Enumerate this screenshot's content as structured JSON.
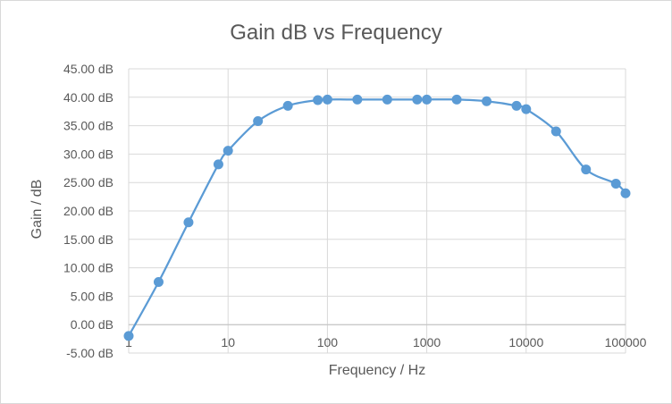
{
  "chart_data": {
    "type": "scatter",
    "title": "Gain dB vs Frequency",
    "xlabel": "Frequency / Hz",
    "ylabel": "Gain / dB",
    "x_scale": "log",
    "xlim": [
      1,
      100000
    ],
    "ylim": [
      -5,
      45
    ],
    "grid": true,
    "legend": "none",
    "line": "smooth",
    "x_ticks": [
      "1",
      "10",
      "100",
      "1000",
      "10000",
      "100000"
    ],
    "y_ticks": [
      "-5.00 dB",
      "0.00 dB",
      "5.00 dB",
      "10.00 dB",
      "15.00 dB",
      "20.00 dB",
      "25.00 dB",
      "30.00 dB",
      "35.00 dB",
      "40.00 dB",
      "45.00 dB"
    ],
    "series": [
      {
        "color": "#5b9bd5",
        "points": [
          [
            1,
            -2.0
          ],
          [
            2,
            7.5
          ],
          [
            4,
            18.0
          ],
          [
            8,
            28.2
          ],
          [
            10,
            30.6
          ],
          [
            20,
            35.8
          ],
          [
            40,
            38.5
          ],
          [
            80,
            39.5
          ],
          [
            100,
            39.6
          ],
          [
            200,
            39.6
          ],
          [
            400,
            39.6
          ],
          [
            800,
            39.6
          ],
          [
            1000,
            39.6
          ],
          [
            2000,
            39.6
          ],
          [
            4000,
            39.3
          ],
          [
            8000,
            38.5
          ],
          [
            10000,
            37.9
          ],
          [
            20000,
            34.0
          ],
          [
            40000,
            27.3
          ],
          [
            80000,
            24.8
          ],
          [
            100000,
            23.1
          ]
        ]
      }
    ]
  }
}
